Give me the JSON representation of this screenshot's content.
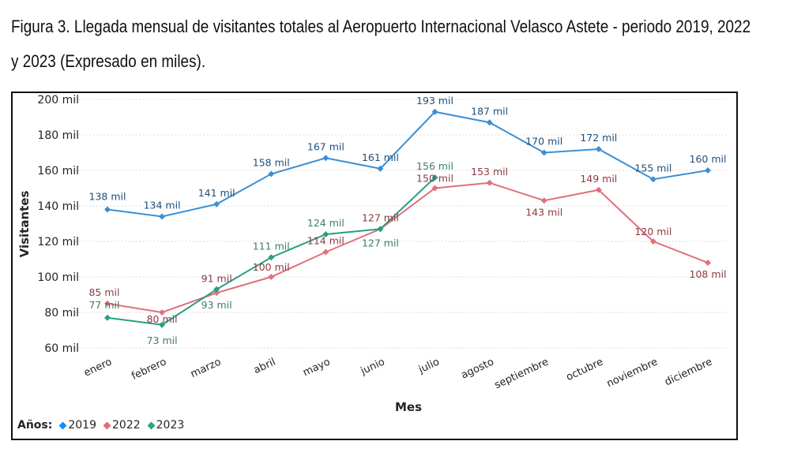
{
  "caption": {
    "line1": "Figura 3. Llegada mensual de visitantes totales al Aeropuerto Internacional Velasco Astete - periodo 2019, 2022",
    "line2": "y 2023 (Expresado en miles)."
  },
  "chart_data": {
    "type": "line",
    "title": "Figura 3. Llegada mensual de visitantes totales al Aeropuerto Internacional Velasco Astete - periodo 2019, 2022 y 2023 (Expresado en miles).",
    "xlabel": "Mes",
    "ylabel": "Visitantes",
    "categories": [
      "enero",
      "febrero",
      "marzo",
      "abril",
      "mayo",
      "junio",
      "julio",
      "agosto",
      "septiembre",
      "octubre",
      "noviembre",
      "diciembre"
    ],
    "ylim": [
      60,
      200
    ],
    "yticks": [
      60,
      80,
      100,
      120,
      140,
      160,
      180,
      200
    ],
    "ytick_labels": [
      "60 mil",
      "80 mil",
      "100 mil",
      "120 mil",
      "140 mil",
      "160 mil",
      "180 mil",
      "200 mil"
    ],
    "grid": true,
    "legend": {
      "title": "Años:",
      "position": "bottom-left"
    },
    "unit_suffix": " mil",
    "series": [
      {
        "name": "2019",
        "color": "#118DFF",
        "line_color": "#3A8FD6",
        "label_color": "#1F4E79",
        "values": [
          138,
          134,
          141,
          158,
          167,
          161,
          193,
          187,
          170,
          172,
          155,
          160
        ]
      },
      {
        "name": "2022",
        "color": "#E66C74",
        "line_color": "#E0707A",
        "label_color": "#8B3A42",
        "values": [
          85,
          80,
          91,
          100,
          114,
          127,
          150,
          153,
          143,
          149,
          120,
          108
        ]
      },
      {
        "name": "2023",
        "color": "#1AAB87",
        "line_color": "#26A17F",
        "label_color": "#3E7D65",
        "values": [
          77,
          73,
          93,
          111,
          124,
          127,
          156,
          null,
          null,
          null,
          null,
          null
        ]
      }
    ]
  }
}
